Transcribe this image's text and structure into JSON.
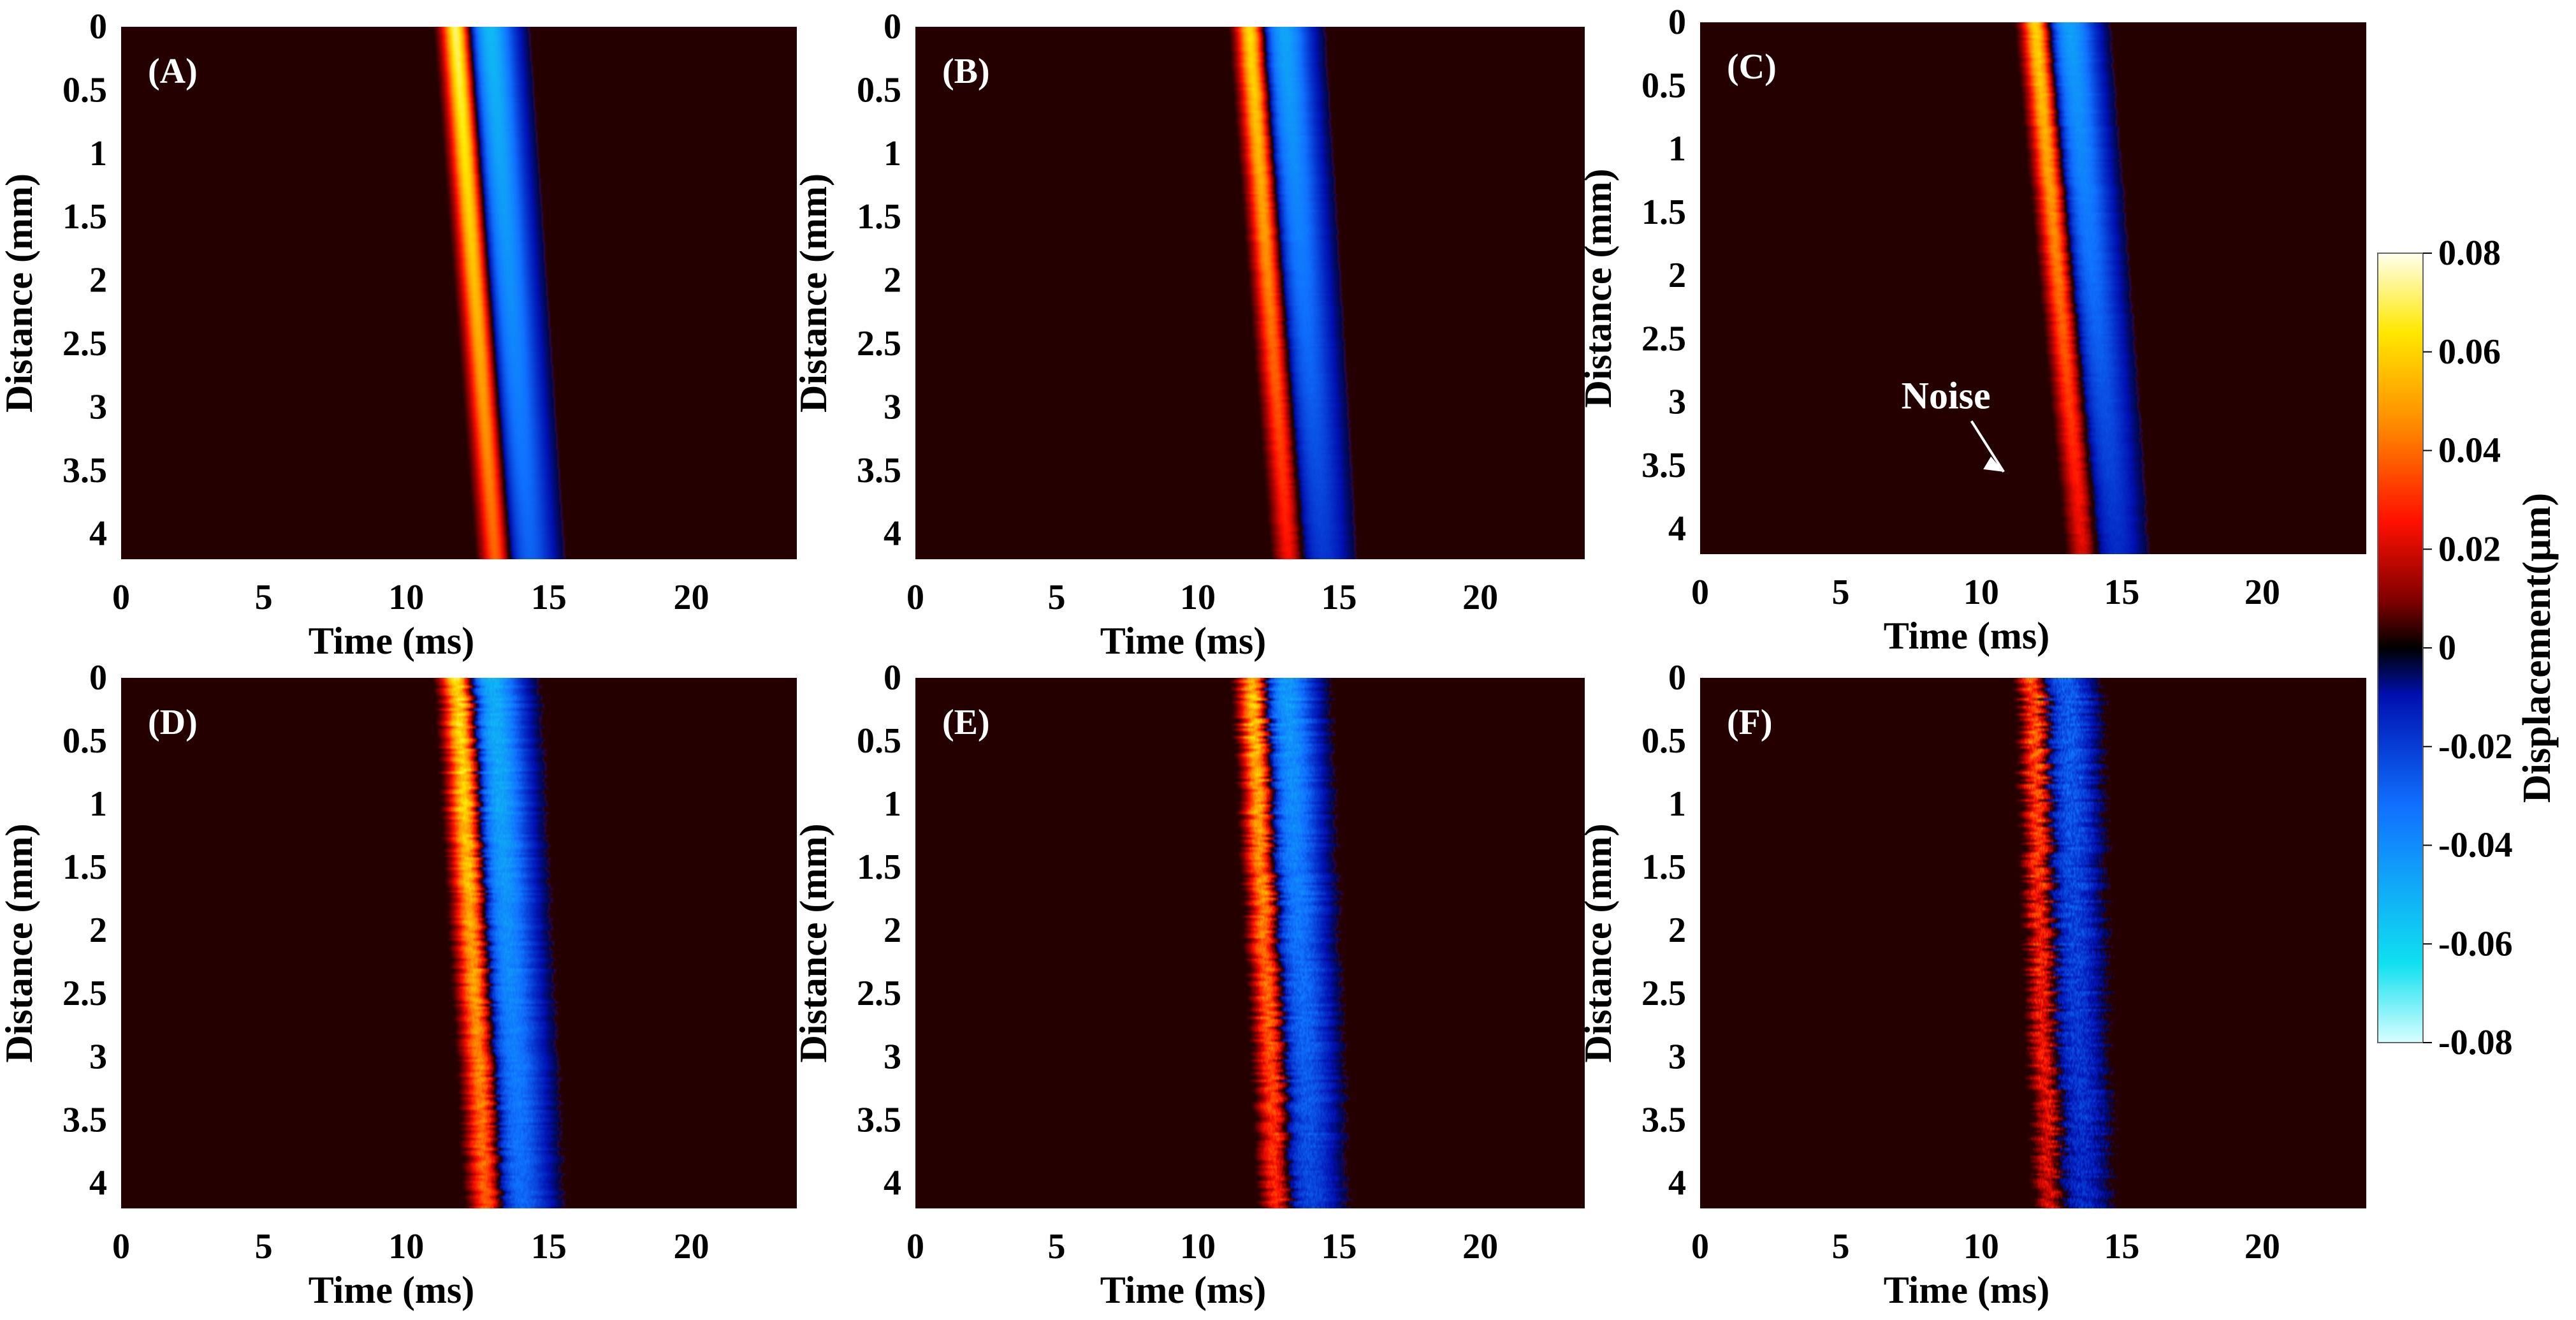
{
  "chart_data": {
    "type": "heatmap",
    "colormap": "jet-dark (cyan → blue → black → red → orange → yellow → white)",
    "colorbar": {
      "label": "Displacement(μm)",
      "min": -0.08,
      "max": 0.08,
      "ticks": [
        "0.08",
        "0.06",
        "0.04",
        "0.02",
        "0",
        "-0.02",
        "-0.04",
        "-0.06",
        "-0.08"
      ]
    },
    "x_axis": {
      "label": "Time (ms)",
      "range": [
        0,
        23.7
      ],
      "ticks": [
        0,
        5,
        10,
        15,
        20
      ],
      "tick_labels": [
        "0",
        "5",
        "10",
        "15",
        "20"
      ]
    },
    "y_axis": {
      "label": "Distance (mm)",
      "range": [
        0,
        4.2
      ],
      "ticks": [
        0,
        0.5,
        1,
        1.5,
        2,
        2.5,
        3,
        3.5,
        4
      ],
      "tick_labels": [
        "0",
        "0.5",
        "1",
        "1.5",
        "2",
        "2.5",
        "3",
        "3.5",
        "4"
      ]
    },
    "panels": [
      {
        "id": "A",
        "label": "(A)",
        "wave_start_ms": 11.2,
        "wave_end_ms": 12.6,
        "pos_width_ms": 0.9,
        "neg_width_ms": 1.5,
        "peak_amp": 0.078,
        "end_amp": 0.042,
        "noise": 0.02
      },
      {
        "id": "B",
        "label": "(B)",
        "wave_start_ms": 11.3,
        "wave_end_ms": 12.7,
        "pos_width_ms": 0.9,
        "neg_width_ms": 1.6,
        "peak_amp": 0.07,
        "end_amp": 0.028,
        "noise": 0.06
      },
      {
        "id": "C",
        "label": "(C)",
        "wave_start_ms": 11.4,
        "wave_end_ms": 13.1,
        "pos_width_ms": 0.9,
        "neg_width_ms": 1.6,
        "peak_amp": 0.068,
        "end_amp": 0.024,
        "noise": 0.09,
        "annotation": "Noise"
      },
      {
        "id": "D",
        "label": "(D)",
        "wave_start_ms": 11.3,
        "wave_end_ms": 12.3,
        "pos_width_ms": 1.0,
        "neg_width_ms": 1.8,
        "peak_amp": 0.076,
        "end_amp": 0.044,
        "noise": 0.22
      },
      {
        "id": "E",
        "label": "(E)",
        "wave_start_ms": 11.4,
        "wave_end_ms": 12.3,
        "pos_width_ms": 0.9,
        "neg_width_ms": 1.7,
        "peak_amp": 0.066,
        "end_amp": 0.032,
        "noise": 0.3
      },
      {
        "id": "F",
        "label": "(F)",
        "wave_start_ms": 11.3,
        "wave_end_ms": 11.9,
        "pos_width_ms": 0.8,
        "neg_width_ms": 1.5,
        "peak_amp": 0.042,
        "end_amp": 0.022,
        "noise": 0.45
      }
    ]
  }
}
